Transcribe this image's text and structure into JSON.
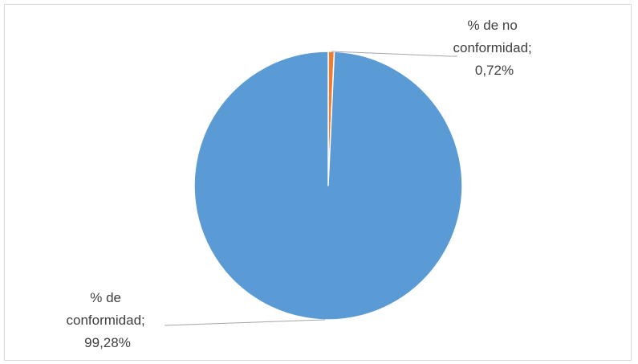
{
  "chart_data": {
    "type": "pie",
    "title": "",
    "slices": [
      {
        "label_lines": [
          "% de no",
          "conformidad;",
          "0,72%"
        ],
        "value": 0.72,
        "color": "#ED7D31"
      },
      {
        "label_lines": [
          "% de",
          "conformidad;",
          "99,28%"
        ],
        "value": 99.28,
        "color": "#5B9BD5"
      }
    ],
    "start_angle_deg": 0,
    "direction": "clockwise",
    "slice_separator_color": "#ffffff",
    "leader_line_color": "#a6a6a6",
    "legend": "none"
  }
}
